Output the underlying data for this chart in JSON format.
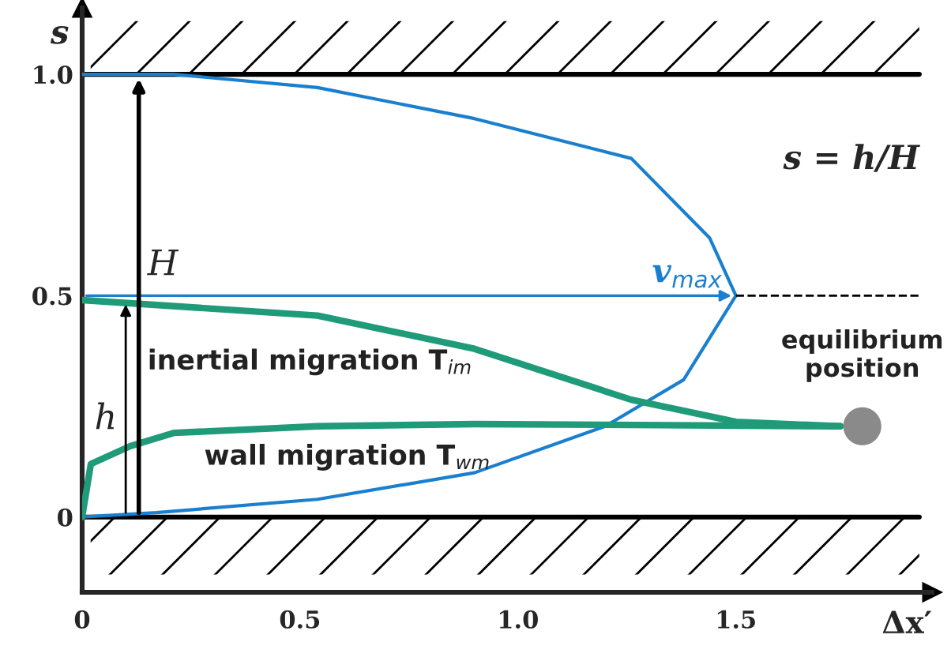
{
  "chart_data": {
    "type": "line",
    "xlabel": "Δx′",
    "ylabel": "s",
    "xlim": [
      0,
      1.95
    ],
    "ylim": [
      -0.17,
      1.15
    ],
    "xticks": [
      0,
      0.5,
      {
        "value": 1.0,
        "label": "1.0"
      },
      1.5
    ],
    "yticks": [
      0,
      0.5,
      {
        "value": 1.0,
        "label": "1.0"
      }
    ],
    "grid": false,
    "series": [
      {
        "color": "#1a7fcf",
        "x": [
          0,
          0.17,
          0.54,
          0.9,
          1.2,
          1.38,
          1.5,
          1.44,
          1.26,
          0.9,
          0.54,
          0.21,
          0
        ],
        "values": [
          0,
          0.01,
          0.04,
          0.1,
          0.205,
          0.31,
          0.5,
          0.63,
          0.81,
          0.9,
          0.97,
          1.0,
          1.0
        ]
      },
      {
        "name": "inertial migration T$_{im}$",
        "color": "#1f9b7a",
        "x": [
          0,
          0.54,
          0.9,
          1.26,
          1.5,
          1.74
        ],
        "values": [
          0.49,
          0.455,
          0.38,
          0.265,
          0.215,
          0.205
        ]
      },
      {
        "name": "wall migration T$_{wm}$",
        "color": "#1f9b7a",
        "x": [
          0,
          0.02,
          0.11,
          0.21,
          0.54,
          0.9,
          1.74
        ],
        "values": [
          0,
          0.12,
          0.16,
          0.19,
          0.205,
          0.21,
          0.205
        ]
      },
      {
        "color": "#000000",
        "line_style": "dashed",
        "x": [
          1.5,
          1.92
        ],
        "values": [
          0.5,
          0.5
        ]
      },
      {
        "type": "scatter",
        "marker": "circle",
        "color": "#8a8a8a",
        "x": [
          1.79
        ],
        "values": [
          0.205
        ]
      }
    ],
    "ref_lines": [
      {
        "axis": "y",
        "value": 0,
        "color": "#000000"
      },
      {
        "axis": "y",
        "value": 1.0,
        "color": "#000000"
      }
    ],
    "bands": [
      {
        "axis": "y",
        "from": 1.0,
        "to": 1.12
      },
      {
        "axis": "y",
        "from": -0.13,
        "to": 0
      }
    ],
    "annotations": [
      {
        "text": "v$_{max}$",
        "x": 1.5,
        "y": 0.5
      },
      "H",
      {
        "text": "h",
        "x": 0.1,
        "y": 0.49
      },
      {
        "text": "equilibrium\nposition",
        "x": 1.79,
        "y": 0.205
      },
      "s = h/H"
    ]
  }
}
